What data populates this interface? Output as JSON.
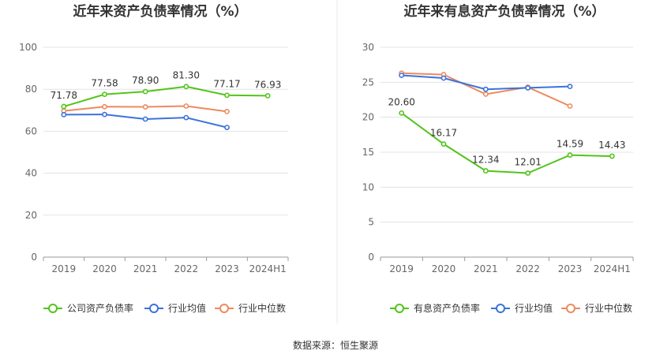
{
  "source_text": "数据来源：恒生聚源",
  "chart_data": [
    {
      "type": "line",
      "title": "近年来资产负债率情况（%）",
      "categories": [
        "2019",
        "2020",
        "2021",
        "2022",
        "2023",
        "2024H1"
      ],
      "yticks": [
        "0",
        "20",
        "40",
        "60",
        "80",
        "100"
      ],
      "ylim": [
        0,
        100
      ],
      "grid": true,
      "legend_position": "bottom",
      "series": [
        {
          "name": "公司资产负债率",
          "color": "#52c41a",
          "values": [
            71.78,
            77.58,
            78.9,
            81.3,
            77.17,
            76.93
          ],
          "labels": [
            "71.78",
            "77.58",
            "78.90",
            "81.30",
            "77.17",
            "76.93"
          ]
        },
        {
          "name": "行业均值",
          "color": "#3b73d9",
          "values": [
            67.9,
            68.0,
            65.8,
            66.5,
            61.8,
            null
          ]
        },
        {
          "name": "行业中位数",
          "color": "#ee8a5f",
          "values": [
            69.7,
            71.7,
            71.6,
            72.0,
            69.4,
            null
          ]
        }
      ]
    },
    {
      "type": "line",
      "title": "近年来有息资产负债率情况（%）",
      "categories": [
        "2019",
        "2020",
        "2021",
        "2022",
        "2023",
        "2024H1"
      ],
      "yticks": [
        "0",
        "5",
        "10",
        "15",
        "20",
        "25",
        "30"
      ],
      "ylim": [
        0,
        30
      ],
      "grid": true,
      "legend_position": "bottom",
      "series": [
        {
          "name": "有息资产负债率",
          "color": "#52c41a",
          "values": [
            20.6,
            16.17,
            12.34,
            12.01,
            14.59,
            14.43
          ],
          "labels": [
            "20.60",
            "16.17",
            "12.34",
            "12.01",
            "14.59",
            "14.43"
          ]
        },
        {
          "name": "行业均值",
          "color": "#3b73d9",
          "values": [
            26.0,
            25.6,
            24.0,
            24.2,
            24.4,
            null
          ]
        },
        {
          "name": "行业中位数",
          "color": "#ee8a5f",
          "values": [
            26.3,
            26.1,
            23.3,
            24.3,
            21.6,
            null
          ]
        }
      ]
    }
  ]
}
